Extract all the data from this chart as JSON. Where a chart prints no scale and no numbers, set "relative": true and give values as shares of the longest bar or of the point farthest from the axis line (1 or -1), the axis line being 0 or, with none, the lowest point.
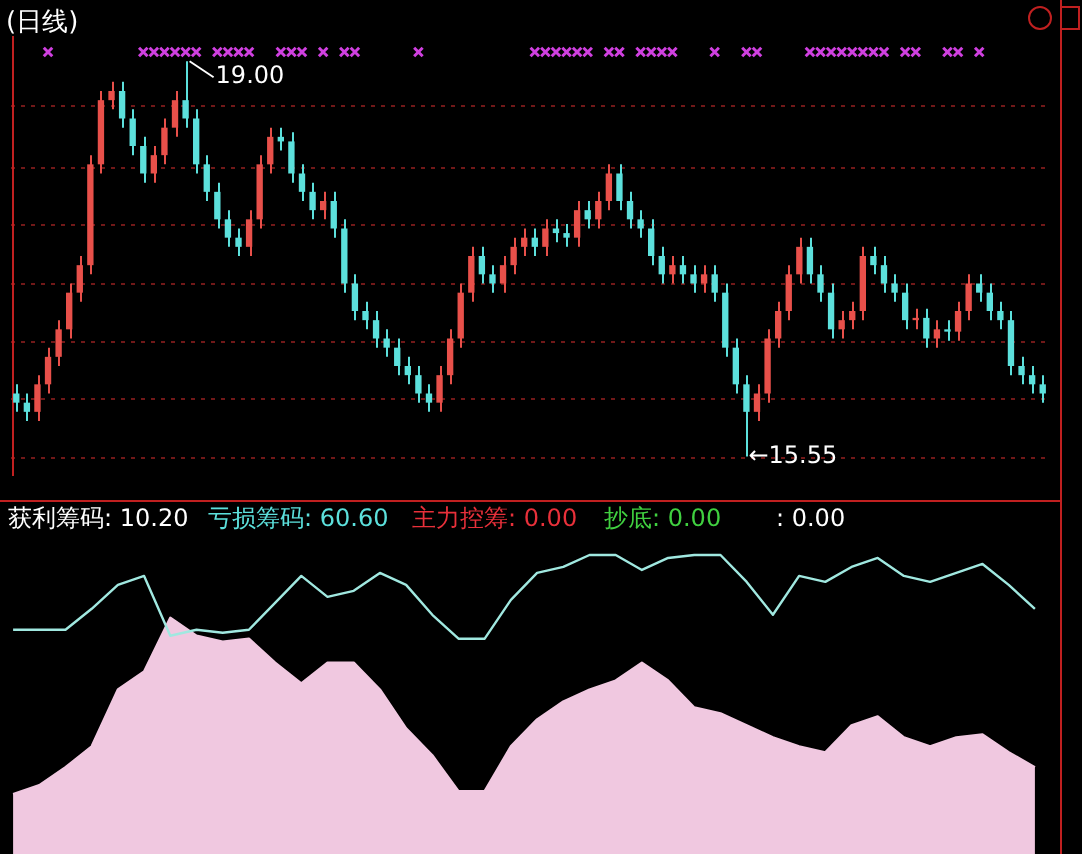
{
  "chart_data": [
    {
      "type": "candlestick",
      "title": "(日线)",
      "categories": [
        null,
        null,
        null,
        null,
        null,
        null,
        null,
        null,
        null,
        null,
        null,
        null,
        null,
        null,
        null,
        null,
        null,
        null,
        null,
        null,
        null,
        null,
        null,
        null,
        null,
        null,
        null,
        null,
        null,
        null,
        null,
        null,
        null,
        null,
        null,
        null,
        null,
        null,
        null,
        null,
        null,
        null,
        null,
        null,
        null,
        null,
        null,
        null,
        null,
        null,
        null,
        null,
        null,
        null,
        null,
        null,
        null,
        null,
        null,
        null,
        null,
        null,
        null,
        null,
        null,
        null,
        null,
        null,
        null,
        null,
        null,
        null,
        null,
        null,
        null,
        null,
        null,
        null,
        null,
        null,
        null,
        null,
        null,
        null,
        null,
        null,
        null,
        null,
        null,
        null,
        null,
        null,
        null,
        null,
        null,
        null,
        null,
        null
      ],
      "ohlc": [
        [
          16.1,
          16.18,
          15.94,
          16.02
        ],
        [
          16.02,
          16.1,
          15.86,
          15.94
        ],
        [
          15.94,
          16.26,
          15.86,
          16.18
        ],
        [
          16.18,
          16.5,
          16.1,
          16.42
        ],
        [
          16.42,
          16.74,
          16.34,
          16.66
        ],
        [
          16.66,
          17.06,
          16.58,
          16.98
        ],
        [
          16.98,
          17.3,
          16.9,
          17.22
        ],
        [
          17.22,
          18.18,
          17.14,
          18.1
        ],
        [
          18.1,
          18.74,
          18.02,
          18.66
        ],
        [
          18.66,
          18.82,
          18.58,
          18.74
        ],
        [
          18.74,
          18.82,
          18.42,
          18.5
        ],
        [
          18.5,
          18.58,
          18.18,
          18.26
        ],
        [
          18.26,
          18.34,
          17.94,
          18.02
        ],
        [
          18.02,
          18.26,
          17.94,
          18.18
        ],
        [
          18.18,
          18.5,
          18.1,
          18.42
        ],
        [
          18.42,
          18.74,
          18.34,
          18.66
        ],
        [
          18.66,
          19.0,
          18.42,
          18.5
        ],
        [
          18.5,
          18.58,
          18.02,
          18.1
        ],
        [
          18.1,
          18.18,
          17.78,
          17.86
        ],
        [
          17.86,
          17.94,
          17.54,
          17.62
        ],
        [
          17.62,
          17.7,
          17.38,
          17.46
        ],
        [
          17.46,
          17.54,
          17.3,
          17.38
        ],
        [
          17.38,
          17.7,
          17.3,
          17.62
        ],
        [
          17.62,
          18.18,
          17.54,
          18.1
        ],
        [
          18.1,
          18.42,
          18.02,
          18.34
        ],
        [
          18.34,
          18.42,
          18.22,
          18.3
        ],
        [
          18.3,
          18.38,
          17.94,
          18.02
        ],
        [
          18.02,
          18.1,
          17.78,
          17.86
        ],
        [
          17.86,
          17.94,
          17.62,
          17.7
        ],
        [
          17.7,
          17.86,
          17.62,
          17.78
        ],
        [
          17.78,
          17.86,
          17.46,
          17.54
        ],
        [
          17.54,
          17.62,
          16.98,
          17.06
        ],
        [
          17.06,
          17.14,
          16.74,
          16.82
        ],
        [
          16.82,
          16.9,
          16.66,
          16.74
        ],
        [
          16.74,
          16.82,
          16.5,
          16.58
        ],
        [
          16.58,
          16.66,
          16.42,
          16.5
        ],
        [
          16.5,
          16.58,
          16.26,
          16.34
        ],
        [
          16.34,
          16.42,
          16.18,
          16.26
        ],
        [
          16.26,
          16.34,
          16.02,
          16.1
        ],
        [
          16.1,
          16.18,
          15.94,
          16.02
        ],
        [
          16.02,
          16.34,
          15.94,
          16.26
        ],
        [
          16.26,
          16.66,
          16.18,
          16.58
        ],
        [
          16.58,
          17.06,
          16.5,
          16.98
        ],
        [
          16.98,
          17.38,
          16.9,
          17.3
        ],
        [
          17.3,
          17.38,
          17.06,
          17.14
        ],
        [
          17.14,
          17.22,
          16.98,
          17.06
        ],
        [
          17.06,
          17.3,
          16.98,
          17.22
        ],
        [
          17.22,
          17.46,
          17.14,
          17.38
        ],
        [
          17.38,
          17.54,
          17.3,
          17.46
        ],
        [
          17.46,
          17.54,
          17.3,
          17.38
        ],
        [
          17.38,
          17.62,
          17.3,
          17.54
        ],
        [
          17.54,
          17.62,
          17.42,
          17.5
        ],
        [
          17.5,
          17.58,
          17.38,
          17.46
        ],
        [
          17.46,
          17.78,
          17.38,
          17.7
        ],
        [
          17.7,
          17.78,
          17.54,
          17.62
        ],
        [
          17.62,
          17.86,
          17.54,
          17.78
        ],
        [
          17.78,
          18.1,
          17.7,
          18.02
        ],
        [
          18.02,
          18.1,
          17.7,
          17.78
        ],
        [
          17.78,
          17.86,
          17.54,
          17.62
        ],
        [
          17.62,
          17.7,
          17.46,
          17.54
        ],
        [
          17.54,
          17.62,
          17.22,
          17.3
        ],
        [
          17.3,
          17.38,
          17.06,
          17.14
        ],
        [
          17.14,
          17.3,
          17.06,
          17.22
        ],
        [
          17.22,
          17.3,
          17.06,
          17.14
        ],
        [
          17.14,
          17.22,
          16.98,
          17.06
        ],
        [
          17.06,
          17.22,
          16.98,
          17.14
        ],
        [
          17.14,
          17.22,
          16.9,
          16.98
        ],
        [
          16.98,
          17.06,
          16.42,
          16.5
        ],
        [
          16.5,
          16.58,
          16.1,
          16.18
        ],
        [
          16.18,
          16.26,
          15.55,
          15.94
        ],
        [
          15.94,
          16.18,
          15.86,
          16.1
        ],
        [
          16.1,
          16.66,
          16.02,
          16.58
        ],
        [
          16.58,
          16.9,
          16.5,
          16.82
        ],
        [
          16.82,
          17.22,
          16.74,
          17.14
        ],
        [
          17.14,
          17.46,
          17.06,
          17.38
        ],
        [
          17.38,
          17.46,
          17.06,
          17.14
        ],
        [
          17.14,
          17.22,
          16.9,
          16.98
        ],
        [
          16.98,
          17.06,
          16.58,
          16.66
        ],
        [
          16.66,
          16.82,
          16.58,
          16.74
        ],
        [
          16.74,
          16.9,
          16.66,
          16.82
        ],
        [
          16.82,
          17.38,
          16.74,
          17.3
        ],
        [
          17.3,
          17.38,
          17.14,
          17.22
        ],
        [
          17.22,
          17.3,
          16.98,
          17.06
        ],
        [
          17.06,
          17.14,
          16.9,
          16.98
        ],
        [
          16.98,
          17.06,
          16.66,
          16.74
        ],
        [
          16.74,
          16.84,
          16.66,
          16.76
        ],
        [
          16.76,
          16.84,
          16.5,
          16.58
        ],
        [
          16.58,
          16.74,
          16.5,
          16.66
        ],
        [
          16.66,
          16.74,
          16.56,
          16.64
        ],
        [
          16.64,
          16.9,
          16.56,
          16.82
        ],
        [
          16.82,
          17.14,
          16.74,
          17.06
        ],
        [
          17.06,
          17.14,
          16.9,
          16.98
        ],
        [
          16.98,
          17.06,
          16.74,
          16.82
        ],
        [
          16.82,
          16.9,
          16.66,
          16.74
        ],
        [
          16.74,
          16.82,
          16.26,
          16.34
        ],
        [
          16.34,
          16.42,
          16.18,
          16.26
        ],
        [
          16.26,
          16.34,
          16.1,
          16.18
        ],
        [
          16.18,
          16.26,
          16.02,
          16.1
        ]
      ],
      "colors": [
        "#5ce0dc",
        "#5ce0dc",
        "#e8504a",
        "#e8504a",
        "#e8504a",
        "#e8504a",
        "#e8504a",
        "#e8504a",
        "#e8504a",
        "#e8504a",
        "#5ce0dc",
        "#5ce0dc",
        "#5ce0dc",
        "#e8504a",
        "#e8504a",
        "#e8504a",
        "#5ce0dc",
        "#5ce0dc",
        "#5ce0dc",
        "#5ce0dc",
        "#5ce0dc",
        "#5ce0dc",
        "#e8504a",
        "#e8504a",
        "#e8504a",
        "#5ce0dc",
        "#5ce0dc",
        "#5ce0dc",
        "#5ce0dc",
        "#e8504a",
        "#5ce0dc",
        "#5ce0dc",
        "#5ce0dc",
        "#5ce0dc",
        "#5ce0dc",
        "#5ce0dc",
        "#5ce0dc",
        "#5ce0dc",
        "#5ce0dc",
        "#5ce0dc",
        "#e8504a",
        "#e8504a",
        "#e8504a",
        "#e8504a",
        "#5ce0dc",
        "#5ce0dc",
        "#e8504a",
        "#e8504a",
        "#e8504a",
        "#5ce0dc",
        "#e8504a",
        "#5ce0dc",
        "#5ce0dc",
        "#e8504a",
        "#5ce0dc",
        "#e8504a",
        "#e8504a",
        "#5ce0dc",
        "#5ce0dc",
        "#5ce0dc",
        "#5ce0dc",
        "#5ce0dc",
        "#e8504a",
        "#5ce0dc",
        "#5ce0dc",
        "#e8504a",
        "#5ce0dc",
        "#5ce0dc",
        "#5ce0dc",
        "#5ce0dc",
        "#e8504a",
        "#e8504a",
        "#e8504a",
        "#e8504a",
        "#e8504a",
        "#5ce0dc",
        "#5ce0dc",
        "#5ce0dc",
        "#e8504a",
        "#e8504a",
        "#e8504a",
        "#5ce0dc",
        "#5ce0dc",
        "#5ce0dc",
        "#5ce0dc",
        "#e8504a",
        "#5ce0dc",
        "#e8504a",
        "#5ce0dc",
        "#e8504a",
        "#e8504a",
        "#5ce0dc",
        "#5ce0dc",
        "#5ce0dc",
        "#5ce0dc",
        "#5ce0dc",
        "#5ce0dc",
        "#5ce0dc"
      ],
      "series": [
        {
          "type": "scatter",
          "color": "#d040e0",
          "values": [
            null,
            null,
            null,
            19.08,
            null,
            null,
            null,
            null,
            null,
            null,
            null,
            null,
            19.08,
            19.08,
            19.08,
            19.08,
            19.08,
            19.08,
            null,
            19.08,
            19.08,
            19.08,
            19.08,
            null,
            null,
            19.08,
            19.08,
            19.08,
            null,
            19.08,
            null,
            19.08,
            19.08,
            null,
            null,
            null,
            null,
            null,
            19.08,
            null,
            null,
            null,
            null,
            null,
            null,
            null,
            null,
            null,
            null,
            19.08,
            19.08,
            19.08,
            19.08,
            19.08,
            19.08,
            null,
            19.08,
            19.08,
            null,
            19.08,
            19.08,
            19.08,
            19.08,
            null,
            null,
            null,
            19.08,
            null,
            null,
            19.08,
            19.08,
            null,
            null,
            null,
            null,
            19.08,
            19.08,
            19.08,
            19.08,
            19.08,
            19.08,
            19.08,
            19.08,
            null,
            19.08,
            19.08,
            null,
            null,
            19.08,
            19.08,
            null,
            19.08,
            null,
            null,
            null,
            null,
            null,
            null
          ]
        }
      ],
      "marker": "cross",
      "ylim": [
        15.38,
        19.22
      ],
      "yticks": [
        {
          "value": 15.54,
          "label": null
        },
        {
          "value": 16.05,
          "label": null
        },
        {
          "value": 16.55,
          "label": null
        },
        {
          "value": 17.06,
          "label": null
        },
        {
          "value": 17.57,
          "label": null
        },
        {
          "value": 18.07,
          "label": null
        },
        {
          "value": 18.61,
          "label": null
        }
      ],
      "grid": "y",
      "tick_labels": false,
      "annotations": [
        {
          "text": "19.00",
          "y": 19.0
        },
        "←15.55"
      ]
    },
    {
      "type": "line",
      "relative": true,
      "tick_labels": false,
      "categories": [
        null,
        null,
        null,
        null,
        null,
        null,
        null,
        null,
        null,
        null,
        null,
        null,
        null,
        null,
        null,
        null,
        null,
        null,
        null,
        null,
        null,
        null,
        null,
        null,
        null,
        null,
        null,
        null,
        null,
        null,
        null,
        null,
        null,
        null,
        null,
        null,
        null,
        null,
        null,
        null
      ],
      "series": [
        {
          "type": "area",
          "color": "#f0c8e0",
          "values": [
            0.2,
            0.23,
            0.29,
            0.36,
            0.55,
            0.61,
            0.79,
            0.73,
            0.71,
            0.72,
            0.64,
            0.57,
            0.64,
            0.64,
            0.55,
            0.42,
            0.33,
            0.21,
            0.21,
            0.36,
            0.45,
            0.51,
            0.55,
            0.58,
            0.64,
            0.58,
            0.49,
            0.47,
            0.43,
            0.39,
            0.36,
            0.34,
            0.43,
            0.46,
            0.39,
            0.36,
            0.39,
            0.4,
            0.34,
            0.29
          ]
        },
        {
          "type": "line",
          "color": "#a0e8e0",
          "values": [
            0.75,
            0.75,
            0.75,
            0.82,
            0.9,
            0.93,
            0.73,
            0.75,
            0.74,
            0.75,
            0.84,
            0.93,
            0.86,
            0.88,
            0.94,
            0.9,
            0.8,
            0.72,
            0.72,
            0.85,
            0.94,
            0.96,
            1,
            1,
            0.95,
            0.99,
            1,
            1,
            0.91,
            0.8,
            0.93,
            0.91,
            0.96,
            0.99,
            0.93,
            0.91,
            0.94,
            0.97,
            0.9,
            0.82
          ]
        }
      ],
      "annotations": [
        "获利筹码: 10.20",
        "亏损筹码: 60.60",
        "主力控筹: 0.00",
        "抄底: 0.00",
        ": 0.00"
      ]
    }
  ]
}
